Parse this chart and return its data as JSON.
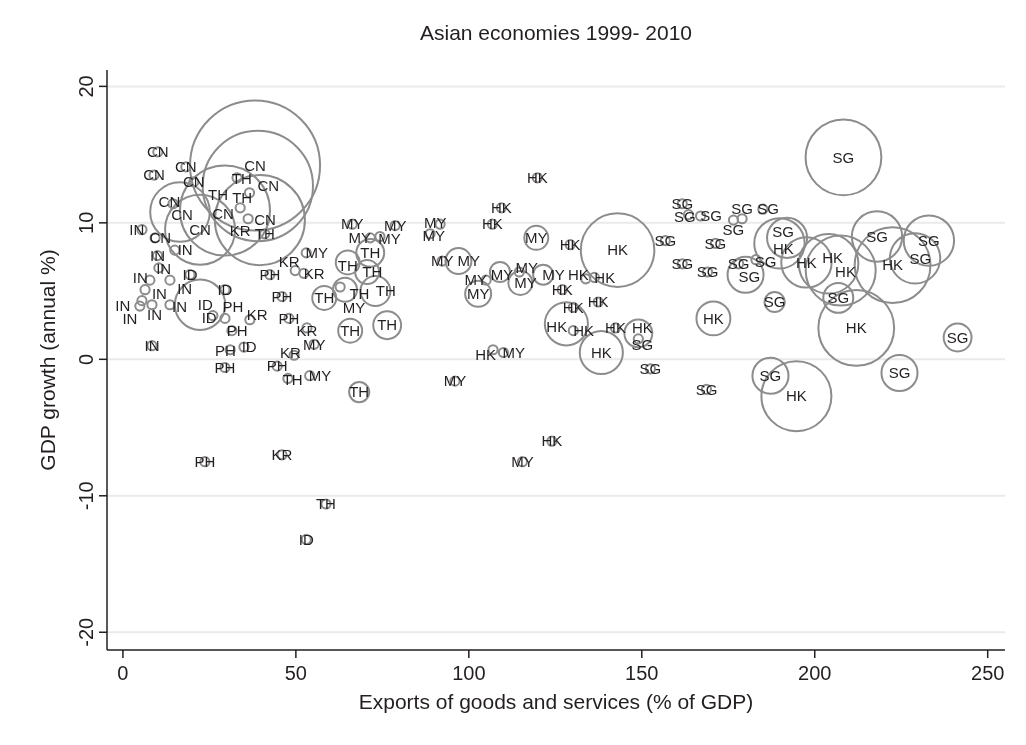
{
  "chart_data": {
    "type": "bubble",
    "title": "Asian economies 1999- 2010",
    "xlabel": "Exports of goods and services (% of GDP)",
    "ylabel": "GDP growth (annual %)",
    "xlim": [
      -4.6,
      255
    ],
    "ylim": [
      -21.3,
      21.2
    ],
    "xticks": [
      0,
      50,
      100,
      150,
      200,
      250
    ],
    "yticks": [
      -20,
      -10,
      0,
      10,
      20
    ],
    "grid": "y",
    "legend": false,
    "series": [
      {
        "name": "CN",
        "color": "#8c8c8c",
        "x": [
          10.1,
          9,
          18.2,
          20.5,
          38.2,
          39,
          14.5,
          16.5,
          9.3,
          22.3,
          29.5,
          39.6
        ],
        "values": [
          15.2,
          13.5,
          14.1,
          13,
          14.2,
          12.7,
          11.4,
          10.8,
          8.9,
          9.5,
          10.9,
          10.2
        ],
        "sizes": [
          0.005,
          0.005,
          0.005,
          0.005,
          1,
          0.72,
          0.005,
          0.21,
          0.005,
          0.29,
          0.48,
          0.48
        ]
      },
      {
        "name": "IN",
        "color": "#8c8c8c",
        "x": [
          8.4,
          5.5,
          10,
          10.4,
          7.8,
          6.4,
          5.5,
          4.9,
          8.4,
          13.6,
          15,
          13.6
        ],
        "values": [
          1,
          9.5,
          7.6,
          6.7,
          5.8,
          5.1,
          4.3,
          3.9,
          4,
          4,
          8,
          5.8
        ],
        "sizes": [
          0.005,
          0.005,
          0.005,
          0.005,
          0.005,
          0.005,
          0.005,
          0.005,
          0.005,
          0.005,
          0.005,
          0.005
        ]
      },
      {
        "name": "ID",
        "color": "#8c8c8c",
        "x": [
          53,
          35,
          22.3,
          19.4,
          29.5,
          26
        ],
        "values": [
          -13.2,
          0.9,
          4,
          6.2,
          5.1,
          3.2
        ],
        "sizes": [
          0.005,
          0.005,
          0.15,
          0.005,
          0.005,
          0.005
        ]
      },
      {
        "name": "PH",
        "color": "#8c8c8c",
        "x": [
          23.7,
          29.5,
          31,
          44.6,
          48,
          46,
          31.5,
          42.5,
          29.5
        ],
        "values": [
          -7.5,
          -0.6,
          0.7,
          -0.5,
          3,
          4.6,
          2.1,
          6.2,
          3
        ],
        "sizes": [
          0.005,
          0.005,
          0.005,
          0.005,
          0.005,
          0.005,
          0.005,
          0.005,
          0.005
        ]
      },
      {
        "name": "KR",
        "color": "#8c8c8c",
        "x": [
          46,
          49.5,
          53.2,
          52.3,
          49.8,
          36.2,
          36.7
        ],
        "values": [
          -7,
          0.3,
          2.3,
          6.3,
          6.5,
          10.3,
          2.9
        ],
        "sizes": [
          0.005,
          0.005,
          0.005,
          0.005,
          0.005,
          0.005,
          0.005
        ]
      },
      {
        "name": "TH",
        "color": "#8c8c8c",
        "x": [
          33,
          36.6,
          33.9,
          41,
          71.5,
          65,
          70.6,
          64.2,
          73,
          58.2,
          65.7,
          76.4,
          68.3,
          58.7,
          47.7
        ],
        "values": [
          13.3,
          12.2,
          11.1,
          9.2,
          7.8,
          7.1,
          6.4,
          5.1,
          5,
          4.5,
          2.1,
          2.5,
          -2.4,
          -10.6,
          -1.4
        ],
        "sizes": [
          0.005,
          0.005,
          0.005,
          0.005,
          0.046,
          0.034,
          0.034,
          0.034,
          0.053,
          0.034,
          0.034,
          0.046,
          0.024,
          0.005,
          0.005
        ]
      },
      {
        "name": "MY",
        "color": "#8c8c8c",
        "x": [
          66.3,
          78.7,
          74.3,
          71.5,
          91.7,
          88.8,
          119.5,
          53,
          92.3,
          97,
          102.7,
          109,
          114.6,
          121.5,
          105,
          114.9,
          62.8,
          55.3,
          54,
          96,
          110,
          115.5
        ],
        "values": [
          9.9,
          9.8,
          9,
          8.9,
          9.9,
          9.2,
          8.9,
          7.8,
          7.2,
          7.2,
          4.8,
          6.4,
          6.4,
          6.2,
          5.8,
          5.6,
          5.3,
          1.1,
          -1.2,
          -1.6,
          0.5,
          -7.5
        ],
        "sizes": [
          0.005,
          0.005,
          0.005,
          0.005,
          0.005,
          0.005,
          0.034,
          0.005,
          0.005,
          0.04,
          0.04,
          0.024,
          0.005,
          0.024,
          0.005,
          0.034,
          0.005,
          0.005,
          0.005,
          0.005,
          0.005,
          0.005
        ]
      },
      {
        "name": "HK",
        "color": "#8c8c8c",
        "x": [
          119.8,
          109.4,
          106.8,
          129.3,
          143,
          189.8,
          197.6,
          204,
          207.5,
          222.5,
          127,
          133.8,
          136.3,
          137.4,
          130.2,
          128.2,
          130.2,
          142.4,
          149,
          138.3,
          170.7,
          212,
          194.7,
          124,
          107
        ],
        "values": [
          13.3,
          11.1,
          9.9,
          8.4,
          8,
          8.5,
          7.1,
          7,
          6.5,
          6.9,
          5.1,
          5.9,
          6,
          4.2,
          3.8,
          2.6,
          2.1,
          2.3,
          1.9,
          0.5,
          3,
          2.3,
          -2.7,
          -6,
          0.7
        ],
        "sizes": [
          0.005,
          0.005,
          0.005,
          0.005,
          0.32,
          0.15,
          0.15,
          0.21,
          0.29,
          0.34,
          0.005,
          0.005,
          0.005,
          0.005,
          0.005,
          0.11,
          0.005,
          0.005,
          0.046,
          0.11,
          0.068,
          0.34,
          0.29,
          0.005,
          0.005
        ]
      },
      {
        "name": "SG",
        "color": "#8c8c8c",
        "x": [
          208.3,
          161.7,
          163.5,
          167,
          176.5,
          179,
          185,
          156.8,
          171.3,
          161.7,
          169,
          178,
          183,
          180,
          192,
          188.4,
          206.8,
          218,
          233,
          229,
          241.3,
          224.5,
          187.2,
          152.5,
          168.7,
          149
        ],
        "values": [
          14.8,
          11.4,
          10.6,
          10.5,
          10.2,
          10.3,
          11,
          8.7,
          8.5,
          7,
          6.4,
          7,
          7.3,
          6.2,
          8.9,
          4.2,
          4.5,
          9,
          8.7,
          7.4,
          1.6,
          -1,
          -1.2,
          -0.7,
          -2.2,
          1.5
        ],
        "sizes": [
          0.34,
          0.005,
          0.005,
          0.005,
          0.005,
          0.005,
          0.005,
          0.005,
          0.005,
          0.005,
          0.005,
          0.005,
          0.005,
          0.077,
          0.095,
          0.024,
          0.053,
          0.15,
          0.15,
          0.15,
          0.046,
          0.077,
          0.077,
          0.005,
          0.005,
          0.005
        ]
      }
    ]
  }
}
